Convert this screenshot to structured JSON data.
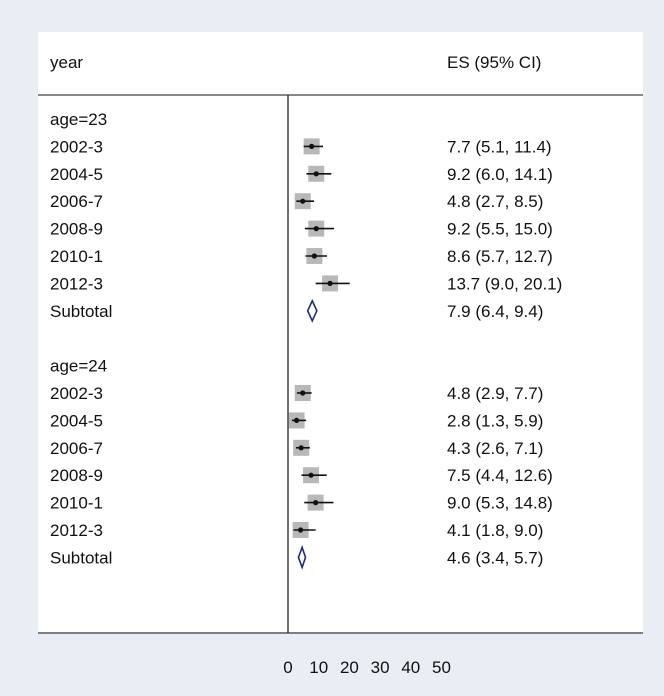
{
  "chart_data": {
    "type": "forest",
    "columns": {
      "label_header": "year",
      "es_header": "ES (95% CI)"
    },
    "x_axis": {
      "min": 0,
      "max": 50,
      "ticks": [
        0,
        10,
        20,
        30,
        40,
        50
      ],
      "null_line": 0
    },
    "groups": [
      {
        "label": "age=23",
        "rows": [
          {
            "label": "2002-3",
            "es": 7.7,
            "lo": 5.1,
            "hi": 11.4,
            "text": "7.7 (5.1, 11.4)"
          },
          {
            "label": "2004-5",
            "es": 9.2,
            "lo": 6.0,
            "hi": 14.1,
            "text": "9.2 (6.0, 14.1)"
          },
          {
            "label": "2006-7",
            "es": 4.8,
            "lo": 2.7,
            "hi": 8.5,
            "text": "4.8 (2.7, 8.5)"
          },
          {
            "label": "2008-9",
            "es": 9.2,
            "lo": 5.5,
            "hi": 15.0,
            "text": "9.2 (5.5, 15.0)"
          },
          {
            "label": "2010-1",
            "es": 8.6,
            "lo": 5.7,
            "hi": 12.7,
            "text": "8.6 (5.7, 12.7)"
          },
          {
            "label": "2012-3",
            "es": 13.7,
            "lo": 9.0,
            "hi": 20.1,
            "text": "13.7 (9.0, 20.1)"
          }
        ],
        "subtotal": {
          "label": "Subtotal",
          "es": 7.9,
          "lo": 6.4,
          "hi": 9.4,
          "text": "7.9 (6.4, 9.4)"
        }
      },
      {
        "label": "age=24",
        "rows": [
          {
            "label": "2002-3",
            "es": 4.8,
            "lo": 2.9,
            "hi": 7.7,
            "text": "4.8 (2.9, 7.7)"
          },
          {
            "label": "2004-5",
            "es": 2.8,
            "lo": 1.3,
            "hi": 5.9,
            "text": "2.8 (1.3, 5.9)"
          },
          {
            "label": "2006-7",
            "es": 4.3,
            "lo": 2.6,
            "hi": 7.1,
            "text": "4.3 (2.6, 7.1)"
          },
          {
            "label": "2008-9",
            "es": 7.5,
            "lo": 4.4,
            "hi": 12.6,
            "text": "7.5 (4.4, 12.6)"
          },
          {
            "label": "2010-1",
            "es": 9.0,
            "lo": 5.3,
            "hi": 14.8,
            "text": "9.0 (5.3, 14.8)"
          },
          {
            "label": "2012-3",
            "es": 4.1,
            "lo": 1.8,
            "hi": 9.0,
            "text": "4.1 (1.8, 9.0)"
          }
        ],
        "subtotal": {
          "label": "Subtotal",
          "es": 4.6,
          "lo": 3.4,
          "hi": 5.7,
          "text": "4.6 (3.4, 5.7)"
        }
      }
    ],
    "colors": {
      "background": "#e8eef4",
      "plot_area": "#ffffff",
      "weight_box": "#b8b8b8",
      "point": "#111111",
      "ci_line": "#111111",
      "diamond": "#1f2a7a",
      "axis": "#111111"
    }
  }
}
